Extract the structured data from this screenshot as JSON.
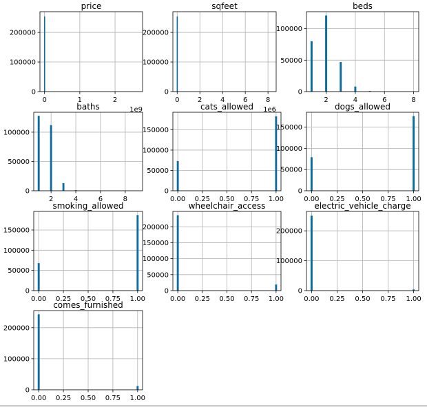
{
  "chart_data": [
    {
      "type": "bar",
      "title": "price",
      "xlim": [
        -0.13,
        2.78
      ],
      "ylim": [
        0,
        270000
      ],
      "xticks": [
        0,
        1,
        2
      ],
      "xtick_labels": [
        "0",
        "1",
        "2"
      ],
      "yticks": [
        0,
        100000,
        200000
      ],
      "ytick_labels": [
        "0",
        "100000",
        "200000"
      ],
      "offset_label": "1e9",
      "bar_width": 0.0278,
      "grid": true,
      "color": "#0d6c9e",
      "x": [
        0.0
      ],
      "values": [
        254000
      ]
    },
    {
      "type": "bar",
      "title": "sqfeet",
      "xlim": [
        -0.38,
        8.72
      ],
      "ylim": [
        0,
        270000
      ],
      "xticks": [
        0,
        2,
        4,
        6,
        8
      ],
      "xtick_labels": [
        "0",
        "2",
        "4",
        "6",
        "8"
      ],
      "yticks": [
        0,
        100000,
        200000
      ],
      "ytick_labels": [
        "0",
        "100000",
        "200000"
      ],
      "offset_label": "1e6",
      "bar_width": 0.0836,
      "grid": true,
      "color": "#0d6c9e",
      "x": [
        0.0
      ],
      "values": [
        254000
      ]
    },
    {
      "type": "bar",
      "title": "beds",
      "xlim": [
        0.65,
        8.35
      ],
      "ylim": [
        0,
        127000
      ],
      "xticks": [
        2,
        4,
        6,
        8
      ],
      "xtick_labels": [
        "2",
        "4",
        "6",
        "8"
      ],
      "yticks": [
        0,
        50000,
        100000
      ],
      "ytick_labels": [
        "0",
        "50000",
        "100000"
      ],
      "bar_width": 0.14,
      "grid": true,
      "color": "#0d6c9e",
      "x": [
        1,
        2,
        3,
        4,
        5
      ],
      "values": [
        80000,
        121000,
        47000,
        8000,
        1000
      ]
    },
    {
      "type": "bar",
      "title": "baths",
      "xlim": [
        0.6,
        9.4
      ],
      "ylim": [
        0,
        134000
      ],
      "xticks": [
        2,
        4,
        6,
        8
      ],
      "xtick_labels": [
        "2",
        "4",
        "6",
        "8"
      ],
      "yticks": [
        0,
        50000,
        100000
      ],
      "ytick_labels": [
        "0",
        "50000",
        "100000"
      ],
      "bar_width": 0.16,
      "grid": true,
      "color": "#0d6c9e",
      "x": [
        1,
        2,
        3,
        4
      ],
      "values": [
        128000,
        112000,
        13000,
        1000
      ]
    },
    {
      "type": "bar",
      "title": "cats_allowed",
      "xlim": [
        -0.05,
        1.05
      ],
      "ylim": [
        0,
        193000
      ],
      "xticks": [
        0,
        0.25,
        0.5,
        0.75,
        1
      ],
      "xtick_labels": [
        "0.00",
        "0.25",
        "0.50",
        "0.75",
        "1.00"
      ],
      "yticks": [
        0,
        50000,
        100000,
        150000
      ],
      "ytick_labels": [
        "0",
        "50000",
        "100000",
        "150000"
      ],
      "bar_width": 0.02,
      "grid": true,
      "color": "#0d6c9e",
      "x": [
        0.0,
        1.0
      ],
      "values": [
        73000,
        183000
      ]
    },
    {
      "type": "bar",
      "title": "dogs_allowed",
      "xlim": [
        -0.05,
        1.05
      ],
      "ylim": [
        0,
        185000
      ],
      "xticks": [
        0,
        0.25,
        0.5,
        0.75,
        1
      ],
      "xtick_labels": [
        "0.00",
        "0.25",
        "0.50",
        "0.75",
        "1.00"
      ],
      "yticks": [
        0,
        50000,
        100000,
        150000
      ],
      "ytick_labels": [
        "0",
        "50000",
        "100000",
        "150000"
      ],
      "bar_width": 0.02,
      "grid": true,
      "color": "#0d6c9e",
      "x": [
        0.0,
        1.0
      ],
      "values": [
        79000,
        176000
      ]
    },
    {
      "type": "bar",
      "title": "smoking_allowed",
      "xlim": [
        -0.05,
        1.05
      ],
      "ylim": [
        0,
        196000
      ],
      "xticks": [
        0,
        0.25,
        0.5,
        0.75,
        1
      ],
      "xtick_labels": [
        "0.00",
        "0.25",
        "0.50",
        "0.75",
        "1.00"
      ],
      "yticks": [
        0,
        50000,
        100000,
        150000
      ],
      "ytick_labels": [
        "0",
        "50000",
        "100000",
        "150000"
      ],
      "bar_width": 0.02,
      "grid": true,
      "color": "#0d6c9e",
      "x": [
        0.0,
        1.0
      ],
      "values": [
        68000,
        187000
      ]
    },
    {
      "type": "bar",
      "title": "wheelchair_access",
      "xlim": [
        -0.05,
        1.05
      ],
      "ylim": [
        0,
        248000
      ],
      "xticks": [
        0,
        0.25,
        0.5,
        0.75,
        1
      ],
      "xtick_labels": [
        "0.00",
        "0.25",
        "0.50",
        "0.75",
        "1.00"
      ],
      "yticks": [
        0,
        50000,
        100000,
        150000,
        200000
      ],
      "ytick_labels": [
        "0",
        "50000",
        "100000",
        "150000",
        "200000"
      ],
      "bar_width": 0.02,
      "grid": true,
      "color": "#0d6c9e",
      "x": [
        0.0,
        1.0
      ],
      "values": [
        236000,
        19000
      ]
    },
    {
      "type": "bar",
      "title": "electric_vehicle_charge",
      "xlim": [
        -0.05,
        1.05
      ],
      "ylim": [
        0,
        265000
      ],
      "xticks": [
        0,
        0.25,
        0.5,
        0.75,
        1
      ],
      "xtick_labels": [
        "0.00",
        "0.25",
        "0.50",
        "0.75",
        "1.00"
      ],
      "yticks": [
        0,
        100000,
        200000
      ],
      "ytick_labels": [
        "0",
        "100000",
        "200000"
      ],
      "bar_width": 0.02,
      "grid": true,
      "color": "#0d6c9e",
      "x": [
        0.0,
        1.0
      ],
      "values": [
        251000,
        4000
      ]
    },
    {
      "type": "bar",
      "title": "comes_furnished",
      "xlim": [
        -0.05,
        1.05
      ],
      "ylim": [
        0,
        255000
      ],
      "xticks": [
        0,
        0.25,
        0.5,
        0.75,
        1
      ],
      "xtick_labels": [
        "0.00",
        "0.25",
        "0.50",
        "0.75",
        "1.00"
      ],
      "yticks": [
        0,
        100000,
        200000
      ],
      "ytick_labels": [
        "0",
        "100000",
        "200000"
      ],
      "bar_width": 0.02,
      "grid": true,
      "color": "#0d6c9e",
      "x": [
        0.0,
        1.0
      ],
      "values": [
        243000,
        12000
      ]
    }
  ]
}
